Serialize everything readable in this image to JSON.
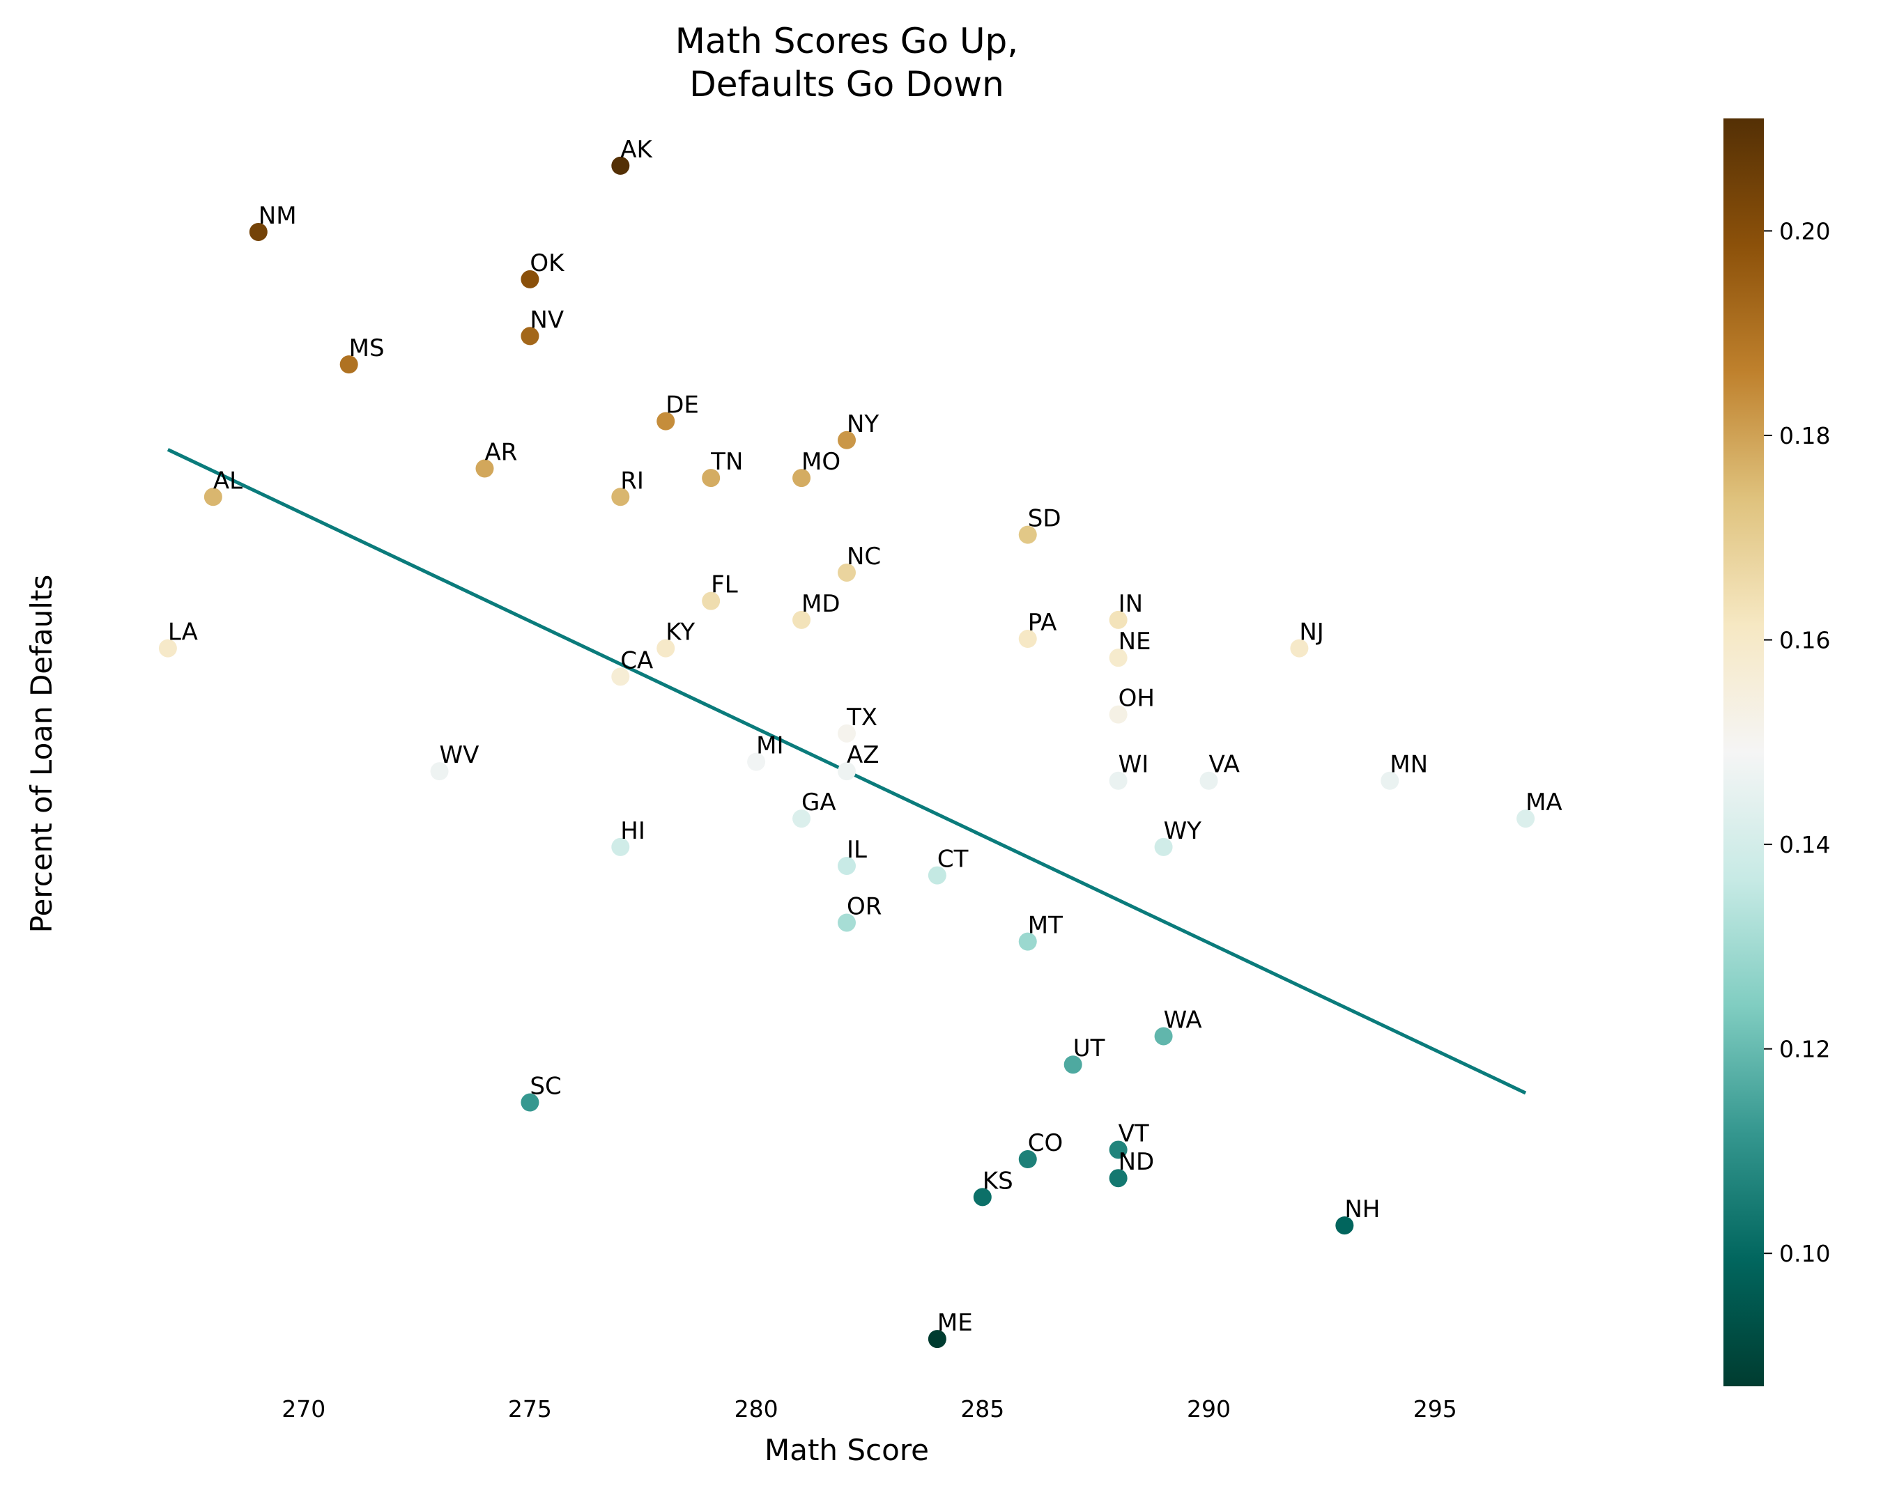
{
  "chart_data": {
    "type": "scatter",
    "title": "Math Scores Go Up,\nDefaults Go Down",
    "xlabel": "Math Score",
    "ylabel": "Percent of Loan Defaults",
    "xlim": [
      265.6,
      298.4
    ],
    "ylim": [
      0.082,
      0.216
    ],
    "xticks": [
      270,
      275,
      280,
      285,
      290,
      295
    ],
    "yticks_visible": false,
    "grid": false,
    "color_scale": {
      "name": "BrBG_r",
      "vmin": 0.087,
      "vmax": 0.211,
      "ticks": [
        "0.10",
        "0.12",
        "0.14",
        "0.16",
        "0.18",
        "0.20"
      ],
      "stops": [
        "#003c30",
        "#01665e",
        "#35978f",
        "#80cdc1",
        "#c7eae5",
        "#f5f5f5",
        "#f6e8c3",
        "#dfc27d",
        "#bf812d",
        "#8c510a",
        "#543005"
      ]
    },
    "trendline": {
      "color": "#0a7b7b",
      "x": [
        267,
        297
      ],
      "y": [
        0.181,
        0.113
      ]
    },
    "points": [
      {
        "label": "AK",
        "x": 277,
        "y": 0.211
      },
      {
        "label": "NM",
        "x": 269,
        "y": 0.204
      },
      {
        "label": "OK",
        "x": 275,
        "y": 0.199
      },
      {
        "label": "NV",
        "x": 275,
        "y": 0.193
      },
      {
        "label": "MS",
        "x": 271,
        "y": 0.19
      },
      {
        "label": "DE",
        "x": 278,
        "y": 0.184
      },
      {
        "label": "NY",
        "x": 282,
        "y": 0.182
      },
      {
        "label": "AR",
        "x": 274,
        "y": 0.179
      },
      {
        "label": "TN",
        "x": 279,
        "y": 0.178
      },
      {
        "label": "MO",
        "x": 281,
        "y": 0.178
      },
      {
        "label": "AL",
        "x": 268,
        "y": 0.176
      },
      {
        "label": "RI",
        "x": 277,
        "y": 0.176
      },
      {
        "label": "SD",
        "x": 286,
        "y": 0.172
      },
      {
        "label": "NC",
        "x": 282,
        "y": 0.168
      },
      {
        "label": "FL",
        "x": 279,
        "y": 0.165
      },
      {
        "label": "MD",
        "x": 281,
        "y": 0.163
      },
      {
        "label": "IN",
        "x": 288,
        "y": 0.163
      },
      {
        "label": "PA",
        "x": 286,
        "y": 0.161
      },
      {
        "label": "LA",
        "x": 267,
        "y": 0.16
      },
      {
        "label": "KY",
        "x": 278,
        "y": 0.16
      },
      {
        "label": "NJ",
        "x": 292,
        "y": 0.16
      },
      {
        "label": "NE",
        "x": 288,
        "y": 0.159
      },
      {
        "label": "CA",
        "x": 277,
        "y": 0.157
      },
      {
        "label": "TX",
        "x": 282,
        "y": 0.151
      },
      {
        "label": "OH",
        "x": 288,
        "y": 0.153
      },
      {
        "label": "WV",
        "x": 273,
        "y": 0.147
      },
      {
        "label": "MI",
        "x": 280,
        "y": 0.148
      },
      {
        "label": "AZ",
        "x": 282,
        "y": 0.147
      },
      {
        "label": "WI",
        "x": 288,
        "y": 0.146
      },
      {
        "label": "VA",
        "x": 290,
        "y": 0.146
      },
      {
        "label": "MN",
        "x": 294,
        "y": 0.146
      },
      {
        "label": "GA",
        "x": 281,
        "y": 0.142
      },
      {
        "label": "MA",
        "x": 297,
        "y": 0.142
      },
      {
        "label": "HI",
        "x": 277,
        "y": 0.139
      },
      {
        "label": "WY",
        "x": 289,
        "y": 0.139
      },
      {
        "label": "IL",
        "x": 282,
        "y": 0.137
      },
      {
        "label": "CT",
        "x": 284,
        "y": 0.136
      },
      {
        "label": "OR",
        "x": 282,
        "y": 0.131
      },
      {
        "label": "MT",
        "x": 286,
        "y": 0.129
      },
      {
        "label": "WA",
        "x": 289,
        "y": 0.119
      },
      {
        "label": "UT",
        "x": 287,
        "y": 0.116
      },
      {
        "label": "SC",
        "x": 275,
        "y": 0.112
      },
      {
        "label": "VT",
        "x": 288,
        "y": 0.107
      },
      {
        "label": "CO",
        "x": 286,
        "y": 0.106
      },
      {
        "label": "ND",
        "x": 288,
        "y": 0.104
      },
      {
        "label": "KS",
        "x": 285,
        "y": 0.102
      },
      {
        "label": "NH",
        "x": 293,
        "y": 0.099
      },
      {
        "label": "ME",
        "x": 284,
        "y": 0.087
      }
    ]
  }
}
